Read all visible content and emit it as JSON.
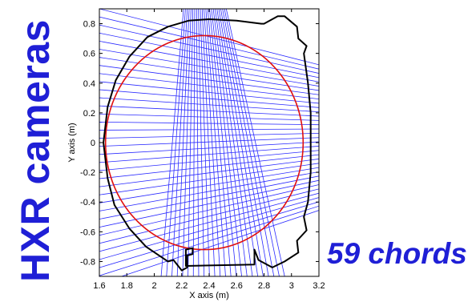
{
  "side_title": "HXR cameras",
  "chords_label": "59 chords",
  "colors": {
    "title_blue": "#1f1fd6",
    "chord_blue": "#2b2bff",
    "plasma_red": "#e01010",
    "vessel_black": "#000000"
  },
  "plot": {
    "xlabel": "X axis (m)",
    "ylabel": "Y axis (m)",
    "xlim": [
      1.6,
      3.2
    ],
    "ylim": [
      -0.9,
      0.9
    ],
    "x_ticks": [
      "1.6",
      "1.8",
      "2",
      "2.2",
      "2.4",
      "2.6",
      "2.8",
      "3",
      "3.2"
    ],
    "y_ticks": [
      "0.8",
      "0.6",
      "0.4",
      "0.2",
      "0",
      "-0.2",
      "-0.4",
      "-0.6",
      "-0.8"
    ]
  },
  "chart_data": {
    "type": "line",
    "xlim": [
      1.6,
      3.2
    ],
    "ylim": [
      -0.9,
      0.9
    ],
    "grid": false,
    "series": [
      {
        "role": "plasma-boundary",
        "center": [
          2.365,
          0.0
        ],
        "radius": 0.72
      },
      {
        "role": "vacuum-vessel",
        "points": [
          [
            2.8,
            0.8
          ],
          [
            2.9,
            0.85
          ],
          [
            2.95,
            0.85
          ],
          [
            3.04,
            0.78
          ],
          [
            3.05,
            0.7
          ],
          [
            3.11,
            0.65
          ],
          [
            3.09,
            0.6
          ],
          [
            3.12,
            0.4
          ],
          [
            3.14,
            0.2
          ],
          [
            3.14,
            -0.2
          ],
          [
            3.12,
            -0.4
          ],
          [
            3.09,
            -0.5
          ],
          [
            3.11,
            -0.59
          ],
          [
            3.04,
            -0.66
          ],
          [
            3.05,
            -0.74
          ],
          [
            2.95,
            -0.8
          ],
          [
            2.86,
            -0.84
          ],
          [
            2.76,
            -0.79
          ],
          [
            2.73,
            -0.72
          ],
          [
            2.73,
            -0.82
          ],
          [
            2.23,
            -0.83
          ],
          [
            2.23,
            -0.72
          ],
          [
            2.28,
            -0.71
          ],
          [
            2.28,
            -0.75
          ],
          [
            2.24,
            -0.76
          ],
          [
            2.24,
            -0.84
          ],
          [
            2.2,
            -0.86
          ],
          [
            2.14,
            -0.79
          ],
          [
            2.1,
            -0.8
          ],
          [
            1.94,
            -0.7
          ],
          [
            1.82,
            -0.58
          ],
          [
            1.71,
            -0.42
          ],
          [
            1.66,
            -0.24
          ],
          [
            1.63,
            0.0
          ],
          [
            1.66,
            0.24
          ],
          [
            1.72,
            0.42
          ],
          [
            1.82,
            0.58
          ],
          [
            1.95,
            0.71
          ],
          [
            2.1,
            0.78
          ],
          [
            2.25,
            0.82
          ],
          [
            2.4,
            0.83
          ],
          [
            2.6,
            0.82
          ],
          [
            2.78,
            0.8
          ]
        ]
      },
      {
        "role": "vertical-camera-chords",
        "count": 24,
        "origin": [
          2.3,
          1.85
        ],
        "bottom_x_range": [
          2.05,
          2.95
        ]
      },
      {
        "role": "horizontal-camera-chords",
        "count": 35,
        "origin": [
          5.0,
          0.1
        ],
        "left_y_range": [
          -0.95,
          0.9
        ]
      }
    ]
  }
}
